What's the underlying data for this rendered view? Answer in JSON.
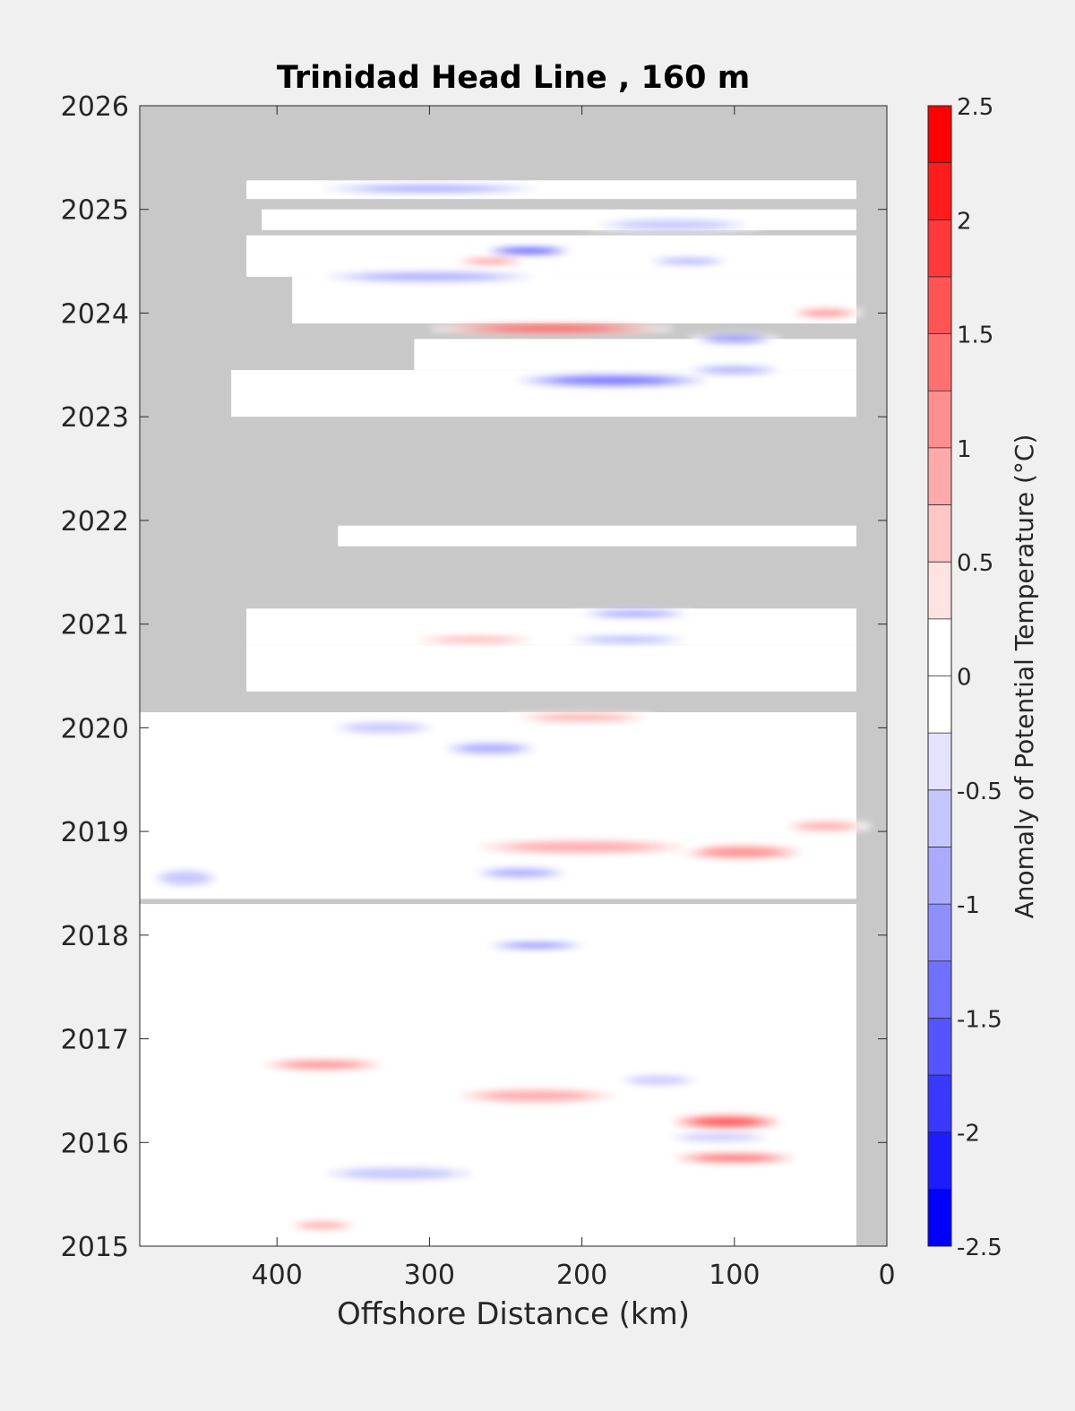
{
  "chart_data": {
    "type": "heatmap",
    "title": "Trinidad Head Line , 160 m",
    "xlabel": "Offshore Distance (km)",
    "ylabel": "",
    "xlim": [
      490,
      0
    ],
    "x_reversed": true,
    "ylim": [
      2015,
      2026
    ],
    "xticks": [
      400,
      300,
      200,
      100,
      0
    ],
    "yticks": [
      2015,
      2016,
      2017,
      2018,
      2019,
      2020,
      2021,
      2022,
      2023,
      2024,
      2025,
      2026
    ],
    "colorbar": {
      "label": "Anomaly of Potential Temperature (°C)",
      "range": [
        -2.5,
        2.5
      ],
      "step": 0.25,
      "ticks": [
        2.5,
        2,
        1.5,
        1,
        0.5,
        0,
        -0.5,
        -1,
        -1.5,
        -2,
        -2.5
      ],
      "tick_labels": [
        "2.5",
        "2",
        "1.5",
        "1",
        "0.5",
        "0",
        "-0.5",
        "-1",
        "-1.5",
        "-2",
        "-2.5"
      ]
    },
    "colors": {
      "no_data": "#c8c8c8",
      "zero": "#ffffff",
      "max": "#ff0000",
      "min": "#0000ff"
    },
    "data_extent": [
      {
        "years": [
          2015.0,
          2018.3
        ],
        "x": [
          490,
          20
        ]
      },
      {
        "years": [
          2018.35,
          2020.15
        ],
        "x": [
          490,
          20
        ]
      },
      {
        "years": [
          2020.35,
          2020.8
        ],
        "x": [
          420,
          20
        ]
      },
      {
        "years": [
          2020.8,
          2021.15
        ],
        "x": [
          420,
          20
        ]
      },
      {
        "years": [
          2021.75,
          2021.95
        ],
        "x": [
          360,
          20
        ]
      },
      {
        "years": [
          2023.0,
          2023.45
        ],
        "x": [
          430,
          20
        ]
      },
      {
        "years": [
          2023.45,
          2023.75
        ],
        "x": [
          310,
          20
        ]
      },
      {
        "years": [
          2023.9,
          2024.35
        ],
        "x": [
          390,
          20
        ]
      },
      {
        "years": [
          2024.35,
          2024.75
        ],
        "x": [
          420,
          20
        ]
      },
      {
        "years": [
          2024.8,
          2025.0
        ],
        "x": [
          410,
          20
        ]
      },
      {
        "years": [
          2025.1,
          2025.28
        ],
        "x": [
          420,
          20
        ]
      }
    ],
    "anomalies": [
      {
        "x": 105,
        "year": 2016.2,
        "value": 1.6,
        "rx": 40,
        "ry": 0.08
      },
      {
        "x": 100,
        "year": 2015.85,
        "value": 1.3,
        "rx": 45,
        "ry": 0.06
      },
      {
        "x": 230,
        "year": 2016.45,
        "value": 0.9,
        "rx": 60,
        "ry": 0.08
      },
      {
        "x": 370,
        "year": 2016.75,
        "value": 1.1,
        "rx": 45,
        "ry": 0.06
      },
      {
        "x": 370,
        "year": 2015.2,
        "value": 1.0,
        "rx": 25,
        "ry": 0.05
      },
      {
        "x": 150,
        "year": 2016.6,
        "value": -0.7,
        "rx": 30,
        "ry": 0.06
      },
      {
        "x": 320,
        "year": 2015.7,
        "value": -0.7,
        "rx": 60,
        "ry": 0.08
      },
      {
        "x": 110,
        "year": 2016.05,
        "value": -0.6,
        "rx": 40,
        "ry": 0.05
      },
      {
        "x": 95,
        "year": 2018.8,
        "value": 1.1,
        "rx": 45,
        "ry": 0.08
      },
      {
        "x": 200,
        "year": 2018.85,
        "value": 0.9,
        "rx": 80,
        "ry": 0.08
      },
      {
        "x": 40,
        "year": 2019.05,
        "value": 1.0,
        "rx": 30,
        "ry": 0.06
      },
      {
        "x": 240,
        "year": 2018.6,
        "value": -0.9,
        "rx": 35,
        "ry": 0.06
      },
      {
        "x": 460,
        "year": 2018.55,
        "value": -0.6,
        "rx": 25,
        "ry": 0.1
      },
      {
        "x": 260,
        "year": 2019.8,
        "value": -0.9,
        "rx": 35,
        "ry": 0.07
      },
      {
        "x": 330,
        "year": 2020.0,
        "value": -0.7,
        "rx": 40,
        "ry": 0.07
      },
      {
        "x": 230,
        "year": 2017.9,
        "value": -1.6,
        "rx": 35,
        "ry": 0.03
      },
      {
        "x": 200,
        "year": 2020.1,
        "value": 0.9,
        "rx": 50,
        "ry": 0.05
      },
      {
        "x": 165,
        "year": 2021.1,
        "value": -1.1,
        "rx": 40,
        "ry": 0.04
      },
      {
        "x": 170,
        "year": 2020.85,
        "value": -0.8,
        "rx": 45,
        "ry": 0.04
      },
      {
        "x": 270,
        "year": 2020.85,
        "value": 0.8,
        "rx": 45,
        "ry": 0.04
      },
      {
        "x": 180,
        "year": 2023.35,
        "value": -1.5,
        "rx": 70,
        "ry": 0.07
      },
      {
        "x": 100,
        "year": 2023.45,
        "value": -1.0,
        "rx": 35,
        "ry": 0.05
      },
      {
        "x": 40,
        "year": 2024.0,
        "value": 1.2,
        "rx": 25,
        "ry": 0.05
      },
      {
        "x": 220,
        "year": 2023.85,
        "value": 2.0,
        "rx": 80,
        "ry": 0.05
      },
      {
        "x": 100,
        "year": 2023.75,
        "value": -1.2,
        "rx": 30,
        "ry": 0.05
      },
      {
        "x": 300,
        "year": 2024.35,
        "value": -1.0,
        "rx": 80,
        "ry": 0.06
      },
      {
        "x": 235,
        "year": 2024.6,
        "value": -2.2,
        "rx": 30,
        "ry": 0.04
      },
      {
        "x": 260,
        "year": 2024.5,
        "value": 1.3,
        "rx": 25,
        "ry": 0.03
      },
      {
        "x": 130,
        "year": 2024.5,
        "value": -0.9,
        "rx": 30,
        "ry": 0.04
      },
      {
        "x": 300,
        "year": 2025.2,
        "value": -1.2,
        "rx": 80,
        "ry": 0.04
      },
      {
        "x": 140,
        "year": 2024.85,
        "value": -0.6,
        "rx": 60,
        "ry": 0.07
      }
    ]
  }
}
